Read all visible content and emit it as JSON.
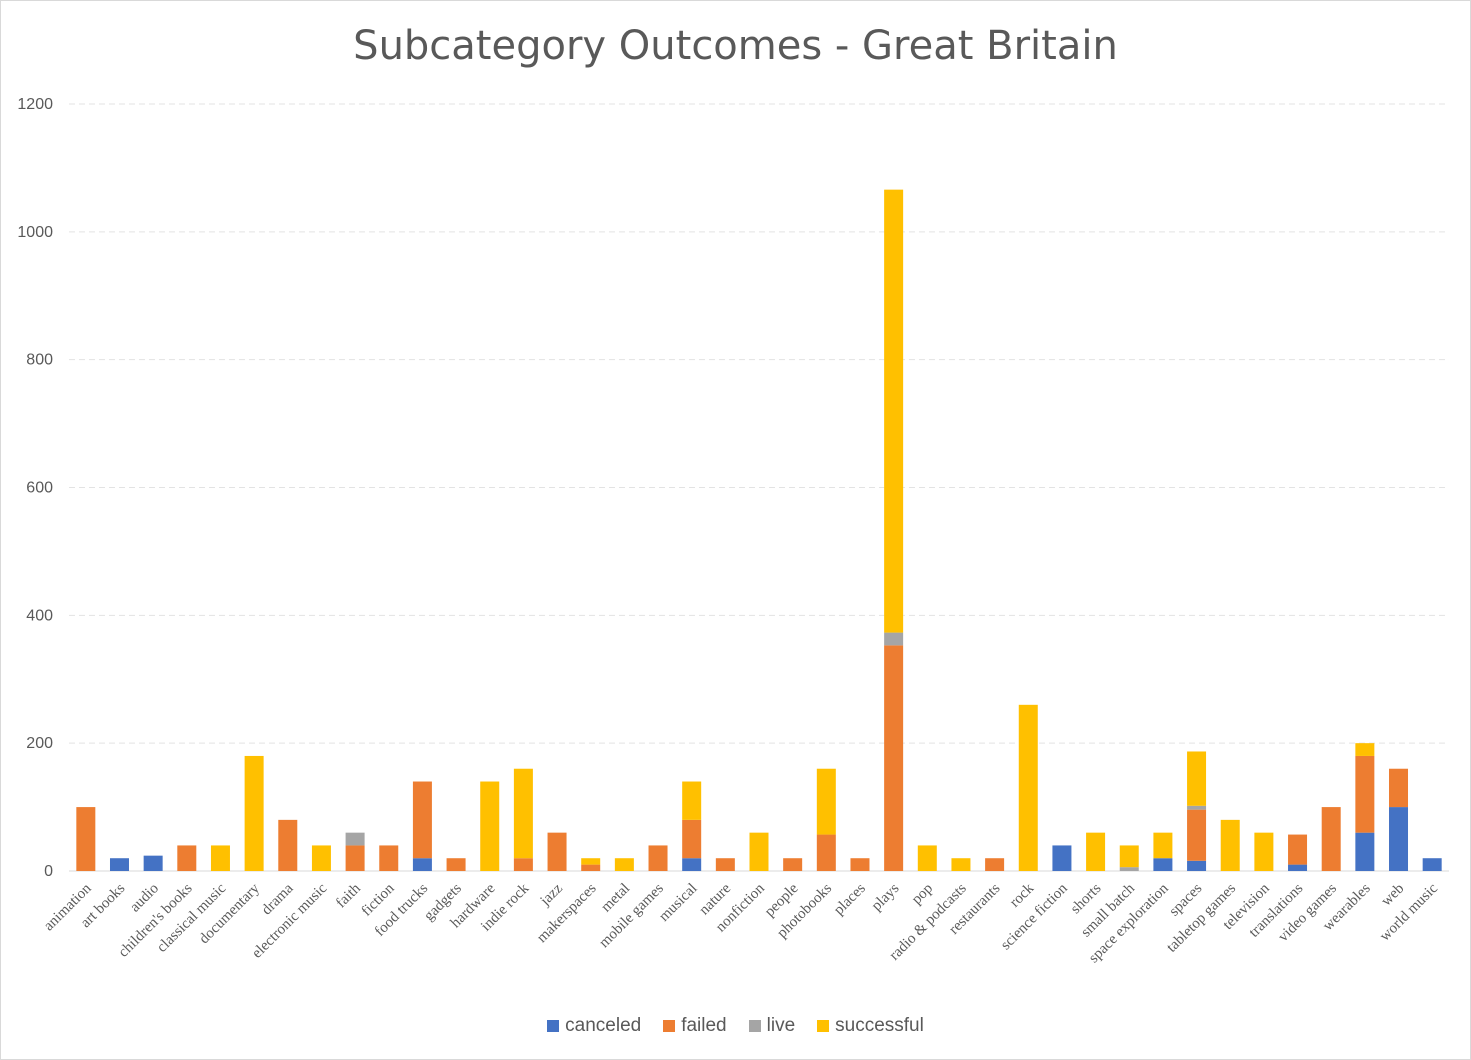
{
  "chart_data": {
    "type": "bar",
    "stacked": true,
    "title": "Subcategory Outcomes - Great Britain",
    "xlabel": "",
    "ylabel": "",
    "ylim": [
      0,
      1200
    ],
    "yticks": [
      0,
      200,
      400,
      600,
      800,
      1000,
      1200
    ],
    "grid": true,
    "legend_position": "bottom",
    "categories": [
      "animation",
      "art books",
      "audio",
      "children's books",
      "classical music",
      "documentary",
      "drama",
      "electronic music",
      "faith",
      "fiction",
      "food trucks",
      "gadgets",
      "hardware",
      "indie rock",
      "jazz",
      "makerspaces",
      "metal",
      "mobile games",
      "musical",
      "nature",
      "nonfiction",
      "people",
      "photobooks",
      "places",
      "plays",
      "pop",
      "radio & podcasts",
      "restaurants",
      "rock",
      "science fiction",
      "shorts",
      "small batch",
      "space exploration",
      "spaces",
      "tabletop games",
      "television",
      "translations",
      "video games",
      "wearables",
      "web",
      "world music"
    ],
    "series": [
      {
        "name": "canceled",
        "color": "#4472C4",
        "values": [
          0,
          20,
          24,
          0,
          0,
          0,
          0,
          0,
          0,
          0,
          20,
          0,
          0,
          0,
          0,
          0,
          0,
          0,
          20,
          0,
          0,
          0,
          0,
          0,
          0,
          0,
          0,
          0,
          0,
          40,
          0,
          0,
          20,
          16,
          0,
          0,
          10,
          0,
          60,
          100,
          20
        ]
      },
      {
        "name": "failed",
        "color": "#ED7D31",
        "values": [
          100,
          0,
          0,
          40,
          0,
          0,
          80,
          0,
          40,
          40,
          120,
          20,
          0,
          20,
          60,
          10,
          0,
          40,
          60,
          20,
          0,
          20,
          57,
          20,
          353,
          0,
          0,
          20,
          0,
          0,
          0,
          0,
          0,
          80,
          0,
          0,
          47,
          100,
          120,
          60,
          0
        ]
      },
      {
        "name": "live",
        "color": "#A5A5A5",
        "values": [
          0,
          0,
          0,
          0,
          0,
          0,
          0,
          0,
          20,
          0,
          0,
          0,
          0,
          0,
          0,
          0,
          0,
          0,
          0,
          0,
          0,
          0,
          0,
          0,
          20,
          0,
          0,
          0,
          0,
          0,
          0,
          6,
          0,
          6,
          0,
          0,
          0,
          0,
          0,
          0,
          0
        ]
      },
      {
        "name": "successful",
        "color": "#FFC000",
        "values": [
          0,
          0,
          0,
          0,
          40,
          180,
          0,
          40,
          0,
          0,
          0,
          0,
          140,
          140,
          0,
          10,
          20,
          0,
          60,
          0,
          60,
          0,
          103,
          0,
          693,
          40,
          20,
          0,
          260,
          0,
          60,
          34,
          40,
          85,
          80,
          60,
          0,
          0,
          20,
          0,
          0
        ]
      }
    ]
  }
}
